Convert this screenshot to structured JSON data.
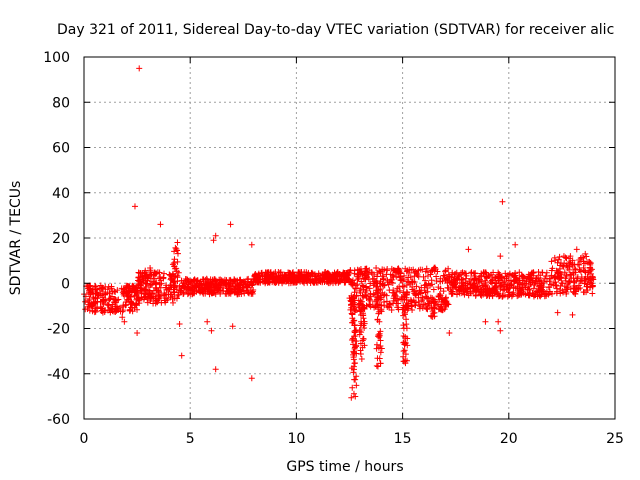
{
  "chart_data": {
    "type": "scatter",
    "title": "Day 321 of 2011, Sidereal Day-to-day VTEC variation (SDTVAR) for receiver alic",
    "xlabel": "GPS time / hours",
    "ylabel": "SDTVAR / TECUs",
    "xlim": [
      0,
      25
    ],
    "ylim": [
      -60,
      100
    ],
    "x_ticks": [
      "0",
      "5",
      "10",
      "15",
      "20",
      "25"
    ],
    "y_ticks": [
      "-60",
      "-40",
      "-20",
      "0",
      "20",
      "40",
      "60",
      "80",
      "100"
    ],
    "grid": true,
    "marker": "+",
    "color": "#ff0000",
    "series": [
      {
        "name": "SDTVAR",
        "bands": [
          {
            "x": [
              0.0,
              2.5
            ],
            "y_min": -13,
            "y_max": -1
          },
          {
            "x": [
              2.5,
              4.5
            ],
            "y_min": -9,
            "y_max": 5
          },
          {
            "x": [
              4.5,
              8.0
            ],
            "y_min": -5,
            "y_max": 2
          },
          {
            "x": [
              8.0,
              12.5
            ],
            "y_min": 0,
            "y_max": 5
          },
          {
            "x": [
              12.5,
              17.2
            ],
            "y_min": -12,
            "y_max": 7
          },
          {
            "x": [
              17.2,
              22.0
            ],
            "y_min": -6,
            "y_max": 5
          },
          {
            "x": [
              22.0,
              24.0
            ],
            "y_min": -5,
            "y_max": 12
          }
        ],
        "spikes": [
          {
            "x": 12.7,
            "y_min": -52,
            "y_max": -5
          },
          {
            "x": 13.1,
            "y_min": -34,
            "y_max": -5
          },
          {
            "x": 13.9,
            "y_min": -39,
            "y_max": -5
          },
          {
            "x": 15.1,
            "y_min": -36,
            "y_max": -5
          },
          {
            "x": 16.4,
            "y_min": -17,
            "y_max": -5
          },
          {
            "x": 4.3,
            "y_min": 0,
            "y_max": 16
          },
          {
            "x": 3.0,
            "y_min": -5,
            "y_max": 10
          }
        ],
        "outliers": [
          [
            2.6,
            95
          ],
          [
            2.4,
            34
          ],
          [
            3.6,
            26
          ],
          [
            6.9,
            26
          ],
          [
            19.7,
            36
          ],
          [
            6.2,
            21
          ],
          [
            6.1,
            19
          ],
          [
            7.9,
            17
          ],
          [
            4.4,
            18
          ],
          [
            20.3,
            17
          ],
          [
            18.1,
            15
          ],
          [
            19.6,
            12
          ],
          [
            23.2,
            15
          ],
          [
            22.9,
            12
          ],
          [
            23.6,
            13
          ],
          [
            1.9,
            -17
          ],
          [
            1.8,
            -15
          ],
          [
            2.5,
            -22
          ],
          [
            4.5,
            -18
          ],
          [
            4.6,
            -32
          ],
          [
            5.8,
            -17
          ],
          [
            6.0,
            -21
          ],
          [
            7.0,
            -19
          ],
          [
            6.2,
            -38
          ],
          [
            7.9,
            -42
          ],
          [
            17.2,
            -22
          ],
          [
            18.9,
            -17
          ],
          [
            19.5,
            -17
          ],
          [
            19.6,
            -21
          ],
          [
            22.3,
            -13
          ],
          [
            23.0,
            -14
          ],
          [
            20.5,
            -5
          ],
          [
            21.4,
            5
          ]
        ]
      }
    ]
  }
}
